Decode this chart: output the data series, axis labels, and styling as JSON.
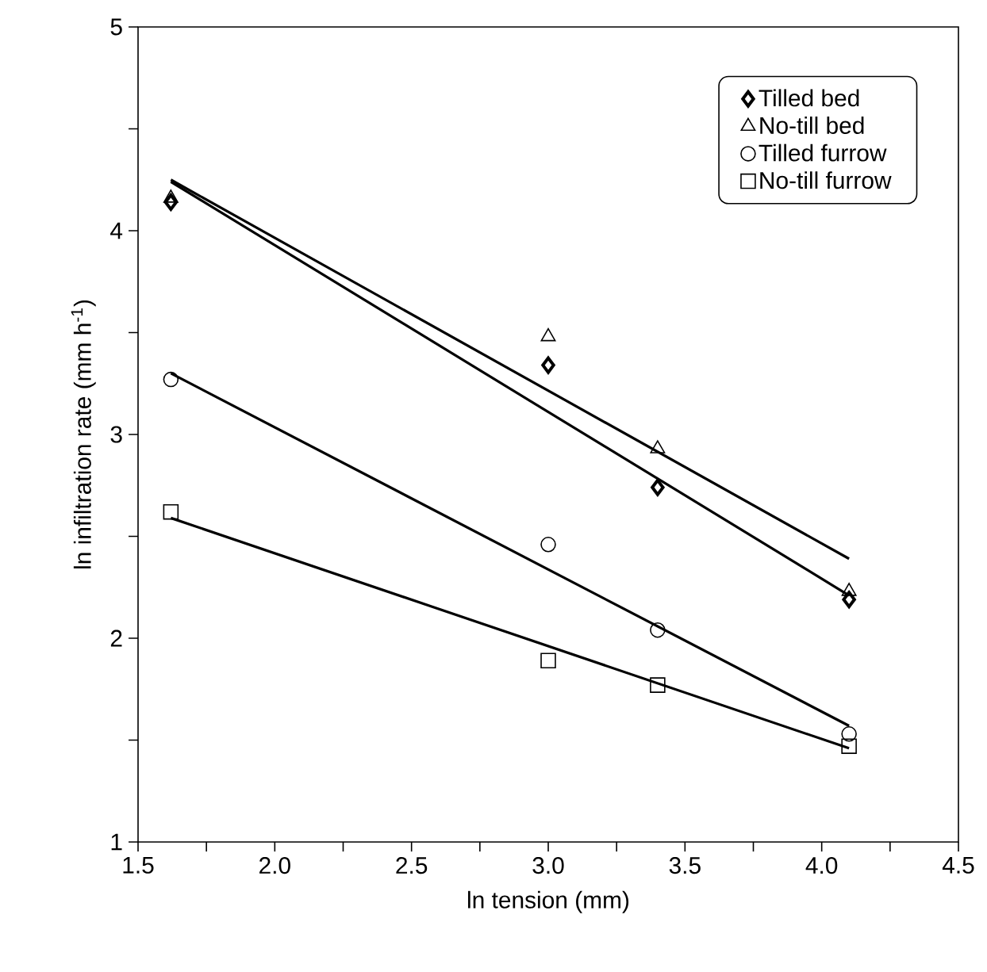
{
  "chart_data": {
    "type": "scatter",
    "xlabel": "ln tension (mm)",
    "ylabel": "ln infiltration rate (mm h$^{-1}$)",
    "xlim": [
      1.5,
      4.5
    ],
    "ylim": [
      1,
      5
    ],
    "xticks": [
      {
        "value": 1.5,
        "label": "1.5"
      },
      {
        "value": 1.75,
        "label": null
      },
      {
        "value": 2,
        "label": "2.0"
      },
      {
        "value": 2.25,
        "label": null
      },
      {
        "value": 2.5,
        "label": "2.5"
      },
      {
        "value": 2.75,
        "label": null
      },
      {
        "value": 3,
        "label": "3.0"
      },
      {
        "value": 3.25,
        "label": null
      },
      {
        "value": 3.5,
        "label": "3.5"
      },
      {
        "value": 3.75,
        "label": null
      },
      {
        "value": 4,
        "label": "4.0"
      },
      {
        "value": 4.25,
        "label": null
      },
      {
        "value": 4.5,
        "label": "4.5"
      }
    ],
    "yticks": [
      1,
      {
        "value": 1.5,
        "label": null
      },
      2,
      {
        "value": 2.5,
        "label": null
      },
      3,
      {
        "value": 3.5,
        "label": null
      },
      4,
      {
        "value": 4.5,
        "label": null
      },
      5
    ],
    "grid": false,
    "legend": "top right",
    "series": [
      {
        "name": "Tilled bed",
        "color": "#000000",
        "marker": "diamond",
        "x": [
          1.62,
          3.0,
          3.4,
          4.1
        ],
        "values": [
          4.14,
          3.34,
          2.74,
          2.19
        ]
      },
      {
        "name": "No-till bed",
        "color": "#000000",
        "marker": "triangle",
        "x": [
          1.62,
          3.0,
          3.4,
          4.1
        ],
        "values": [
          4.16,
          3.48,
          2.93,
          2.23
        ]
      },
      {
        "name": "Tilled furrow",
        "color": "#000000",
        "marker": "circle",
        "x": [
          1.62,
          3.0,
          3.4,
          4.1
        ],
        "values": [
          3.27,
          2.46,
          2.04,
          1.53
        ]
      },
      {
        "name": "No-till furrow",
        "color": "#000000",
        "marker": "square",
        "x": [
          1.62,
          3.0,
          3.4,
          4.1
        ],
        "values": [
          2.62,
          1.89,
          1.77,
          1.47
        ]
      },
      {
        "type": "line",
        "color": "#000000",
        "x": [
          1.62,
          4.1
        ],
        "values": [
          4.24,
          2.21
        ]
      },
      {
        "type": "line",
        "color": "#000000",
        "x": [
          1.62,
          4.1
        ],
        "values": [
          4.25,
          2.39
        ]
      },
      {
        "type": "line",
        "color": "#000000",
        "x": [
          1.62,
          4.1
        ],
        "values": [
          3.3,
          1.57
        ]
      },
      {
        "type": "line",
        "color": "#000000",
        "x": [
          1.62,
          4.1
        ],
        "values": [
          2.59,
          1.46
        ]
      }
    ]
  }
}
